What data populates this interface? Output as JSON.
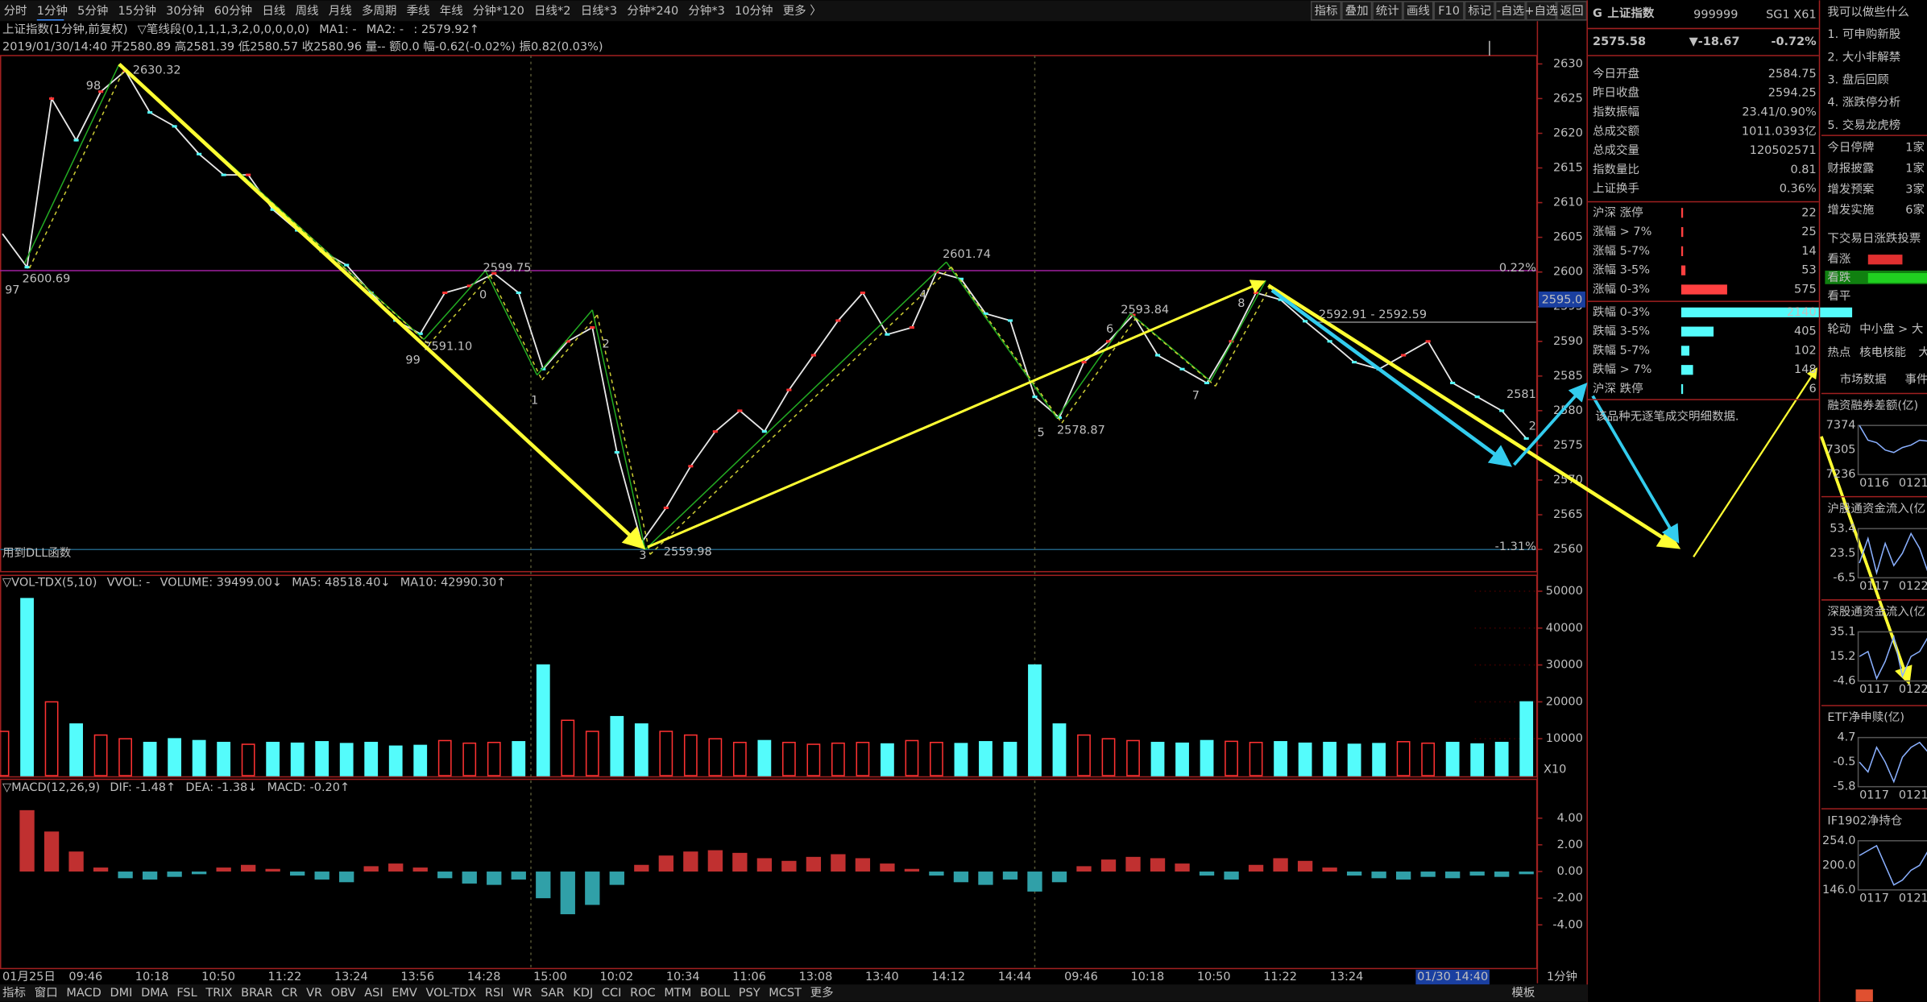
{
  "toolbar": {
    "tabs": [
      "分时",
      "1分钟",
      "5分钟",
      "15分钟",
      "30分钟",
      "60分钟",
      "日线",
      "周线",
      "月线",
      "多周期",
      "季线",
      "年线",
      "分钟*120",
      "日线*2",
      "日线*3",
      "分钟*240",
      "分钟*3",
      "10分钟",
      "更多 〉"
    ],
    "buttons": [
      "指标",
      "叠加",
      "统计",
      "画线",
      "F10",
      "标记",
      "-自选",
      "+自选",
      "返回"
    ]
  },
  "info": {
    "title": "上证指数(1分钟,前复权)",
    "indicator": "▽笔线段(0,1,1,1,3,2,0,0,0,0,0)",
    "ma1": "MA1: -",
    "ma2": "MA2: -",
    "ma2_value": ": 2579.92↑",
    "bar_info": "2019/01/30/14:40 开2580.89 高2581.39 低2580.57 收2580.96 量-- 额0.0 幅-0.62(-0.02%) 振0.82(0.03%)"
  },
  "price_chart": {
    "type": "line",
    "values": [
      2605.5,
      2600.7,
      2625,
      2619,
      2626,
      2629,
      2623,
      2621,
      2617,
      2614,
      2614,
      2609,
      2606,
      2603,
      2601,
      2597,
      2593,
      2591.1,
      2597,
      2598,
      2599.8,
      2597,
      2586,
      2590,
      2592,
      2574,
      2561,
      2566,
      2572,
      2577,
      2580,
      2577,
      2583,
      2588,
      2593,
      2597,
      2591,
      2592,
      2600,
      2599,
      2594,
      2593,
      2582,
      2579,
      2587,
      2590,
      2593.8,
      2588,
      2586,
      2584,
      2590,
      2597,
      2596,
      2592.9,
      2590,
      2587,
      2586,
      2588,
      2590,
      2584,
      2582,
      2580,
      2576
    ],
    "ylim": [
      2556.8,
      2631.2
    ],
    "yticks": [
      2560,
      2565,
      2570,
      2575,
      2580,
      2585,
      2590,
      2595,
      2600,
      2605,
      2610,
      2615,
      2620,
      2625,
      2630
    ],
    "wave_labels": [
      "97",
      "98",
      "99",
      "0",
      "1",
      "2",
      "3",
      "4",
      "5",
      "6",
      "7",
      "8"
    ],
    "price_labels": [
      "2630.32",
      "2600.69",
      "2599.75",
      "2591.10",
      "2559.98",
      "2601.74",
      "2593.84",
      "2578.87",
      "2592.91 - 2592.59",
      "0.22%",
      "-1.31%",
      "2581",
      "2"
    ],
    "current_price": "2595.0",
    "dll_note": "用到DLL函数"
  },
  "volume_chart": {
    "type": "bar",
    "header": [
      "▽VOL-TDX(5,10)",
      "VVOL: -",
      "VOLUME: 39499.00↓",
      "MA5: 48518.40↓",
      "MA10: 42990.30↑"
    ],
    "values": [
      12000,
      48000,
      20000,
      14000,
      11000,
      10000,
      9000,
      10000,
      9500,
      9000,
      8500,
      9000,
      8800,
      9200,
      8700,
      9000,
      8000,
      8200,
      9500,
      8800,
      9000,
      9200,
      30000,
      15000,
      12000,
      16000,
      14000,
      12000,
      11000,
      10000,
      9000,
      9500,
      9000,
      8500,
      8800,
      9000,
      8600,
      9500,
      9000,
      8700,
      9200,
      9000,
      30000,
      14000,
      11000,
      10000,
      9500,
      9000,
      8800,
      9500,
      9300,
      9000,
      9200,
      8800,
      9000,
      8500,
      8700,
      9200,
      8800,
      9000,
      8600,
      9000,
      20000
    ],
    "ylim": [
      0,
      53300
    ],
    "yticks": [
      10000,
      20000,
      30000,
      40000,
      50000
    ],
    "scale_note": "X10"
  },
  "macd_chart": {
    "type": "bar",
    "header": [
      "▽MACD(12,26,9)",
      "DIF: -1.48↑",
      "DEA: -1.38↓",
      "MACD: -0.20↑"
    ],
    "values": [
      0,
      4.6,
      3.0,
      1.5,
      0.3,
      -0.5,
      -0.6,
      -0.4,
      -0.2,
      0.3,
      0.5,
      0.2,
      -0.3,
      -0.6,
      -0.8,
      0.4,
      0.6,
      0.3,
      -0.5,
      -0.9,
      -1.0,
      -0.6,
      -2.0,
      -3.2,
      -2.5,
      -1.0,
      0.5,
      1.2,
      1.5,
      1.6,
      1.4,
      1.0,
      0.8,
      1.1,
      1.3,
      1.0,
      0.6,
      0.2,
      -0.3,
      -0.8,
      -1.0,
      -0.6,
      -1.5,
      -0.8,
      0.4,
      0.9,
      1.1,
      1.0,
      0.6,
      -0.3,
      -0.6,
      0.5,
      1.0,
      0.8,
      0.3,
      -0.3,
      -0.5,
      -0.6,
      -0.4,
      -0.5,
      -0.3,
      -0.4,
      -0.2
    ],
    "ylim": [
      -7.27,
      5.9
    ],
    "yticks": [
      {
        "value": -4,
        "label": "-4.00"
      },
      {
        "value": -2,
        "label": "-2.00"
      },
      {
        "value": 0,
        "label": "0.00"
      },
      {
        "value": 2,
        "label": "2.00"
      },
      {
        "value": 4,
        "label": "4.00"
      }
    ]
  },
  "x_axis": {
    "labels": [
      "01月25日",
      "09:46",
      "10:18",
      "10:50",
      "11:22",
      "13:24",
      "13:56",
      "14:28",
      "15:00",
      "10:02",
      "10:34",
      "11:06",
      "13:08",
      "13:40",
      "14:12",
      "14:44",
      "09:46",
      "10:18",
      "10:50",
      "11:22",
      "13:24"
    ],
    "cursor": "01/30 14:40",
    "period": "1分钟"
  },
  "bottom_tabs": [
    "指标",
    "窗口",
    "MACD",
    "DMI",
    "DMA",
    "FSL",
    "TRIX",
    "BRAR",
    "CR",
    "VR",
    "OBV",
    "ASI",
    "EMV",
    "VOL-TDX",
    "RSI",
    "WR",
    "SAR",
    "KDJ",
    "CCI",
    "ROC",
    "MTM",
    "BOLL",
    "PSY",
    "MCST",
    "更多"
  ],
  "template": "模板",
  "quote": {
    "logo": "G",
    "name": "上证指数",
    "code": "999999",
    "flags": "SG1 X61",
    "price": "2575.58",
    "change": "▼-18.67",
    "change_pct": "-0.72%",
    "rows": [
      [
        "今日开盘",
        "2584.75"
      ],
      [
        "昨日收盘",
        "2594.25"
      ],
      [
        "指数振幅",
        "23.41/0.90%"
      ],
      [
        "总成交额",
        "1011.0393亿"
      ],
      [
        "总成交量",
        "120502571"
      ],
      [
        "指数量比",
        "0.81"
      ],
      [
        "上证换手",
        "0.36%"
      ]
    ],
    "breadth": [
      {
        "label": "沪深 涨停",
        "count": 22
      },
      {
        "label": "涨幅 > 7%",
        "count": 25
      },
      {
        "label": "涨幅 5-7%",
        "count": 14
      },
      {
        "label": "涨幅 3-5%",
        "count": 53
      },
      {
        "label": "涨幅 0-3%",
        "count": 575
      },
      {
        "label": "跌幅 0-3%",
        "count": 2140
      },
      {
        "label": "跌幅 3-5%",
        "count": 405
      },
      {
        "label": "跌幅 5-7%",
        "count": 102
      },
      {
        "label": "跌幅 > 7%",
        "count": 148
      },
      {
        "label": "沪深 跌停",
        "count": 6
      }
    ],
    "note": "该品种无逐笔成交明细数据."
  },
  "side": {
    "title": "我可以做些什么",
    "items": [
      "1. 可申购新股",
      "2. 大小非解禁",
      "3. 盘后回顾",
      "4. 涨跌停分析",
      "5. 交易龙虎榜"
    ],
    "stats": [
      [
        "今日停牌",
        "1家"
      ],
      [
        "财报披露",
        "1家"
      ],
      [
        "增发预案",
        "3家"
      ],
      [
        "增发实施",
        "6家"
      ]
    ],
    "vote_title": "下交易日涨跌投票",
    "votes": [
      "看涨",
      "看跌",
      "看平"
    ],
    "rotation": [
      "轮动",
      "中小盘 > 大"
    ],
    "hot": [
      "热点",
      "核电核能",
      "大"
    ],
    "tabs": [
      "市场数据",
      "事件"
    ],
    "minis": [
      {
        "title": "融资融券差额(亿)",
        "ticks": [
          "7374",
          "7305",
          "7236"
        ],
        "dates": [
          "0116",
          "0121"
        ]
      },
      {
        "title": "沪股通资金流入(亿",
        "ticks": [
          "53.4",
          "23.5",
          "-6.5"
        ],
        "dates": [
          "0117",
          "0122"
        ]
      },
      {
        "title": "深股通资金流入(亿",
        "ticks": [
          "35.1",
          "15.2",
          "-4.6"
        ],
        "dates": [
          "0117",
          "0122"
        ]
      },
      {
        "title": "ETF净申赎(亿)",
        "ticks": [
          "4.7",
          "-0.5",
          "-5.8"
        ],
        "dates": [
          "0117",
          "0121"
        ]
      },
      {
        "title": "IF1902净持仓",
        "ticks": [
          "254.0",
          "200.0",
          "146.0"
        ],
        "dates": [
          "0117",
          "0121"
        ]
      }
    ]
  }
}
